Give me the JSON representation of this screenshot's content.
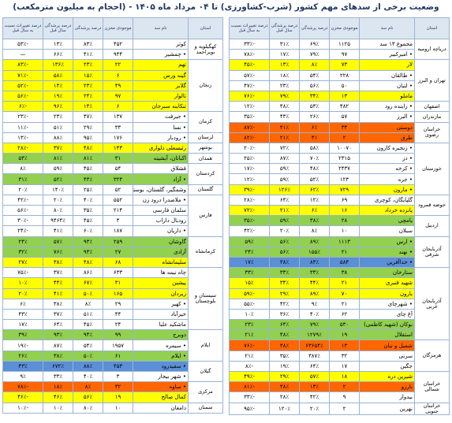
{
  "title": "وضعیت برخی از سدهای مهم کشور (شرب-کشاورزی)  تا ۰۴ مرداد ماه ۱۴۰۵ - (احجام به میلیون مترمکعب)",
  "tables": [
    {
      "headers": [
        "استان",
        "نام سد",
        "موجودی مخزن",
        "درصد پرشدگی",
        "درصد پرشدگی سال قبل",
        "درصد تغییرات نسبت به سال قبل"
      ],
      "groups": [
        {
          "province": "دریاچه ارومیه",
          "rows": [
            {
              "name": "مجموع ۱۳ سد",
              "cells": [
                "۱۱۲۵",
                "۶۹٪",
                "۳۱٪",
                "-۳۳٪"
              ]
            },
            {
              "name": "• امیرکبیر",
              "cells": [
                "۹۷",
                "۷۹٪",
                "۱۷٪",
                "-۷۸٪"
              ]
            }
          ]
        },
        {
          "province": "تهران و البرز",
          "rows": [
            {
              "name": "لار",
              "cells": [
                "۷۳",
                "۸٪",
                "۱۳٪",
                "-۴۵٪"
              ],
              "color": "#ffff00"
            },
            {
              "name": "• طالقان",
              "cells": [
                "۲۲۸",
                "۵۴٪",
                "۱۸٪",
                "-۵۷٪"
              ]
            },
            {
              "name": "• لتیان",
              "cells": [
                "۵۰",
                "۵۶٪",
                "۲۳٪",
                "-۴۷٪"
              ]
            },
            {
              "name": "ماملو",
              "cells": [
                "۱۳",
                "۳۴٪",
                "۷۹٪",
                "-۷۶٪"
              ],
              "color": "#ffff00"
            }
          ]
        },
        {
          "province": "اصفهان",
          "rows": [
            {
              "name": "• زاینده رود",
              "cells": [
                "۴۸۲",
                "۵۳٪",
                "۴۸٪",
                "-۱۲٪"
              ]
            }
          ]
        },
        {
          "province": "مازندران",
          "rows": [
            {
              "name": "• البرز",
              "cells": [
                "۵۷",
                "۲۶٪",
                "۴۳٪",
                "-۳۵٪"
              ]
            }
          ]
        },
        {
          "province": "خراسان رضوی",
          "rows": [
            {
              "name": "دوستی",
              "cells": [
                "۳۴",
                "۶٪",
                "۴۱٪",
                "-۸۷٪"
              ],
              "color": "#ff6600"
            },
            {
              "name": "طرق",
              "cells": [
                "۲",
                "۴٪",
                "۲۱٪",
                "-۸۲٪"
              ],
              "color": "#ff6600"
            }
          ]
        },
        {
          "province": "خوزستان",
          "rows": [
            {
              "name": "• زنجیره کارون",
              "cells": [
                "۱۰۰۷۰",
                "۵۸٪",
                "۷۲٪",
                "-۲۰٪"
              ]
            },
            {
              "name": "• دز",
              "cells": [
                "۲۳۱۵",
                "۷۰٪",
                "۸۷٪",
                "-۲۵٪"
              ]
            },
            {
              "name": "• کرخه",
              "cells": [
                "۲۴۳۷",
                "۴۸٪",
                "۵۹٪",
                "-۱۷٪"
              ]
            },
            {
              "name": "• جره",
              "cells": [
                "۱۲۳",
                "۵۲٪",
                "۵۹٪",
                "-۱۲٪"
              ]
            },
            {
              "name": "• مارون",
              "cells": [
                "۷۲۹",
                "۶۲٪",
                "۱۲۶٪",
                "-۳۹٪"
              ],
              "color": "#ffff00"
            }
          ]
        },
        {
          "province": "حوضه قمرود",
          "rows": [
            {
              "name": "گلپایگان، کوچری",
              "cells": [
                "۶۹",
                "۱۲٪",
                "۶۴٪",
                "-۲۸٪"
              ]
            },
            {
              "name": "پانزده خرداد",
              "cells": [
                "۱۶",
                "۶٪",
                "۲۱٪",
                "-۷۲٪"
              ],
              "color": "#ffff00"
            }
          ]
        },
        {
          "province": "اردبیل",
          "rows": [
            {
              "name": "یامچی",
              "cells": [
                "۲۸",
                "۳۸٪",
                "۵۹٪",
                "-۳۵٪"
              ],
              "color": "#92d050"
            },
            {
              "name": "سبلان",
              "cells": [
                "۱۰",
                "۸٪",
                "۲۰٪",
                "-۴۲٪"
              ]
            }
          ]
        },
        {
          "province": "آذربایجان شرقی",
          "rows": [
            {
              "name": "• ارس",
              "cells": [
                "۱۱۱۳",
                "۸۹٪",
                "۵۶٪",
                "۵۹٪"
              ],
              "color": "#92d050"
            },
            {
              "name": "• نهند",
              "cells": [
                "۲۱",
                "۱۵۵٪",
                "۵۶٪",
                "۲۴٪"
              ],
              "color": "#92d050"
            },
            {
              "name": "• خداآفرین",
              "cells": [
                "۵۸۴",
                "۸۳٪",
                "۳۸٪",
                "۱۷٪"
              ],
              "color": "#5b8fd6"
            }
          ]
        },
        {
          "province": "آذربایجان غربی",
          "rows": [
            {
              "name": "ستارخان",
              "cells": [
                "۳۸",
                "۳۳٪",
                "۳۳٪",
                "۳۳٪"
              ],
              "color": "#92d050"
            },
            {
              "name": "شهید قنبری",
              "cells": [
                "۲۱",
                "۴۴٪",
                "۳۴٪",
                "۱۵٪"
              ],
              "color": "#ffff00"
            },
            {
              "name": "بارون",
              "cells": [
                "۷۰",
                "۸۹٪",
                "۲۹٪",
                "-۵۹٪"
              ],
              "color": "#ffff00"
            },
            {
              "name": "• شهرچای",
              "cells": [
                "۲۱",
                "۹٪",
                "۴۲٪",
                "-۵۵٪"
              ]
            },
            {
              "name": "آغ چای",
              "cells": [
                "۶۲",
                "۴۰٪",
                "۳۶٪",
                "۱۰٪"
              ]
            },
            {
              "name": "بوکان (شهید کاظمی)",
              "cells": [
                "۵۳۰",
                "۷۹٪",
                "۶۴٪",
                "۲۳٪"
              ],
              "color": "#92d050"
            },
            {
              "name": "استقلال",
              "cells": [
                "۱۹",
                "۱۲۷۹٪",
                "۴۸٪",
                "۲۱٪"
              ],
              "color": "#92d050"
            }
          ]
        },
        {
          "province": "هرمزگان",
          "rows": [
            {
              "name": "شمیل و نیان",
              "cells": [
                "۱۳",
                "۶۳۶۵۴٪",
                "۳۸٪",
                "-۷۶٪"
              ],
              "color": "#ff6600"
            },
            {
              "name": "سرنی",
              "cells": [
                "۳۲",
                "۳۸۷٪",
                "۳۵٪",
                "۲۱٪"
              ]
            },
            {
              "name": "جگین",
              "cells": [
                "۱۷",
                "۶۴٪",
                "۱۹٪",
                "-۸٪"
              ]
            }
          ]
        },
        {
          "province": "خراسان شمالی",
          "rows": [
            {
              "name": "شیرین دره",
              "cells": [
                "۱۸",
                "۵۷٪",
                "۲۹٪",
                "-۴۹٪"
              ],
              "color": "#ffff00"
            },
            {
              "name": "بارزو",
              "cells": [
                "۲",
                "۱۳٪",
                "۳۸٪",
                "-۸۱٪"
              ],
              "color": "#ff6600"
            },
            {
              "name": "بیدواز",
              "cells": [
                "۹",
                "۴۲٪",
                "۲۸٪",
                "-۳۳٪"
              ]
            }
          ]
        },
        {
          "province": "خراسان جنوبی",
          "rows": [
            {
              "name": "نهرین",
              "cells": [
                "۲",
                "۲۰٪",
                "۱۲۰٪",
                "-۹۵٪"
              ]
            }
          ]
        }
      ]
    },
    {
      "headers": [
        "استان",
        "نام سد",
        "موجودی مخزن",
        "درصد پرشدگی",
        "درصد پرشدگی سال قبل",
        "درصد تغییرات نسبت به سال قبل"
      ],
      "groups": [
        {
          "province": "کهگیلویه و بویراحمد",
          "rows": [
            {
              "name": "کوثر",
              "cells": [
                "۴۵۲",
                "۸۳٪",
                "۱۳٪",
                "-۵۳٪"
              ]
            },
            {
              "name": "• چمشیر",
              "cells": [
                "۹۴۴",
                "۴۱٪",
                "۶۶٪",
                "—"
              ]
            }
          ]
        },
        {
          "province": "زنجان",
          "rows": [
            {
              "name": "تهم",
              "cells": [
                "۲۲",
                "۲۳٪",
                "۱۳۶٪",
                "-۸۳٪"
              ],
              "color": "#ffff00"
            },
            {
              "name": "گینه ورس",
              "cells": [
                "۶",
                "۱۵٪",
                "۵۸٪",
                "-۷۱٪"
              ],
              "color": "#ffff00"
            },
            {
              "name": "گلابر",
              "cells": [
                "۴۹",
                "۲۳٪",
                "۱۴٪",
                "-۵۲٪"
              ],
              "color": "#ffff00"
            },
            {
              "name": "تالوار",
              "cells": [
                "۹۷",
                "۲۴٪",
                "۱۹٪",
                "-۵۶٪"
              ],
              "color": "#ffff00"
            },
            {
              "name": "تنکابنه سبرجان",
              "cells": [
                "۶",
                "۱۴٪",
                "۹۶٪",
                "-۶٪"
              ],
              "color": "#ffff00"
            }
          ]
        },
        {
          "province": "کرمان",
          "rows": [
            {
              "name": "• جیرفت",
              "cells": [
                "۱۳۷",
                "۴۷٪",
                "۲۳٪",
                "-۲۳٪"
              ]
            },
            {
              "name": "• نسا",
              "cells": [
                "۳۳",
                "۲۹٪",
                "۵۱٪",
                "-۱۱٪"
              ]
            }
          ]
        },
        {
          "province": "لرستان",
          "rows": [
            {
              "name": "• رودبار",
              "cells": [
                "۱۷۶",
                "۹۵٪",
                "۸۸٪",
                "-۱۳٪"
              ]
            }
          ]
        },
        {
          "province": "بوشهر",
          "rows": [
            {
              "name": "رئیسعلی دلواری",
              "cells": [
                "۱۴۳",
                "۴۸٪",
                "۳۷٪",
                "-۲۸٪"
              ],
              "color": "#ffff00"
            }
          ]
        },
        {
          "province": "همدان",
          "rows": [
            {
              "name": "اکباتان، آبشینه",
              "cells": [
                "۳۱",
                "۸۱٪",
                "۸۱٪",
                "۵۴٪"
              ],
              "color": "#92d050"
            }
          ]
        },
        {
          "province": "کردستان",
          "rows": [
            {
              "name": "قشلاق",
              "cells": [
                "۵۴",
                "۴۵٪",
                "۵۹٪",
                "۸٪"
              ]
            },
            {
              "name": "• آزاد",
              "cells": [
                "۳۲۴",
                "۴۳٪",
                "۵۲٪",
                "۳۱٪"
              ],
              "color": "#92d050"
            }
          ]
        },
        {
          "province": "گلستان",
          "rows": [
            {
              "name": "وشمگیر، گلستان، بوستان",
              "cells": [
                "۵۲",
                "۲۵٪",
                "۱۴۰٪",
                "۲۰٪"
              ]
            }
          ]
        },
        {
          "province": "فارس",
          "rows": [
            {
              "name": "• ملاصدرا درود زن",
              "cells": [
                "۵۵۲",
                "۴۰٪",
                "۲۰٪",
                "-۴۲٪"
              ]
            },
            {
              "name": "سلمان فارسی",
              "cells": [
                "۲۱۴",
                "۳۵٪",
                "۸۰٪",
                "-۵۶٪"
              ]
            },
            {
              "name": "رودبال داراب",
              "cells": [
                "۳",
                "۴۵٪",
                "۹۴۶۴٪",
                "-۳۰٪"
              ]
            },
            {
              "name": "• داریان",
              "cells": [
                "۱۸۷",
                "۶۰٪",
                "۴۱٪",
                "-۲۴٪"
              ]
            }
          ]
        },
        {
          "province": "کرمانشاه",
          "rows": [
            {
              "name": "گاوشان",
              "cells": [
                "۲۵۹",
                "۹۳٪",
                "۵۷٪",
                "۲۴٪"
              ],
              "color": "#92d050"
            },
            {
              "name": "آزادی",
              "cells": [
                "۲۷",
                "۹۳٪",
                "۷۶٪",
                "۳۲٪"
              ],
              "color": "#92d050"
            },
            {
              "name": "سلیمانشاه",
              "cells": [
                "۶۸",
                "۴۸٪",
                "۳۸٪",
                "۲۷٪"
              ],
              "color": "#ffff00"
            }
          ]
        },
        {
          "province": "سیستان و بلوچستان",
          "rows": [
            {
              "name": "چاه نیمه ها",
              "cells": [
                "۶۳۳",
                "۸۶٪",
                "۳۷٪",
                "-۷۵٪"
              ]
            },
            {
              "name": "پیشین",
              "cells": [
                "۳۱",
                "۶۷٪",
                "۴۴٪",
                "۱۰٪"
              ],
              "color": "#ffff00"
            },
            {
              "name": "زیردان",
              "cells": [
                "۱۶۵",
                "۵۰٪",
                "۴۱٪",
                "۲۰٪"
              ],
              "color": "#ffff00"
            },
            {
              "name": "• کهیر",
              "cells": [
                "۲۹",
                "۸٪",
                "۳۸٪",
                "۶٪"
              ]
            },
            {
              "name": "خیرآباد",
              "cells": [
                "۴۴",
                "۵۱٪",
                "۳۷٪",
                "۴۳٪"
              ]
            },
            {
              "name": "ماشکید علیا",
              "cells": [
                "۲۴",
                "۴۵٪",
                "۶۴٪",
                "۱۷٪"
              ]
            }
          ]
        },
        {
          "province": "ایلام",
          "rows": [
            {
              "name": "دوبرج",
              "cells": [
                "۹۹",
                "۹۴٪",
                "۹۳٪",
                "۳۹٪"
              ],
              "color": "#92d050"
            },
            {
              "name": "• سیمره",
              "cells": [
                "۱۹۵۷",
                "۵۴٪",
                "۸۷٪",
                "-۱۹٪"
              ]
            },
            {
              "name": "• ایلام",
              "cells": [
                "۶۱",
                "۵۰٪",
                "۳۸٪",
                "۲۶٪"
              ],
              "color": "#92d050"
            }
          ]
        },
        {
          "province": "گیلان",
          "rows": [
            {
              "name": "• سفیدرود",
              "cells": [
                "۴۵۳",
                "۸۸٪",
                "۶۷۲٪",
                "۴۳٪"
              ],
              "color": "#5b8fd6"
            },
            {
              "name": "• شهر بیجار",
              "cells": [
                "۳",
                "۴۰٪",
                "۳۳٪",
                "۹٪"
              ]
            }
          ]
        },
        {
          "province": "مرکزی",
          "rows": [
            {
              "name": "• ساوه",
              "cells": [
                "۳۲",
                "۸٪",
                "۱۸٪",
                "-۷۸٪"
              ],
              "color": "#ff6600"
            },
            {
              "name": "کمال صالح",
              "cells": [
                "۱۹",
                "۵۶٪",
                "۴۶٪",
                "-۴۶٪"
              ],
              "color": "#ffff00"
            }
          ]
        },
        {
          "province": "سمنان",
          "rows": [
            {
              "name": "دامغان",
              "cells": [
                "۱۰",
                "۸۰٪",
                "۱۰٪",
                "-۱۰٪"
              ]
            }
          ]
        }
      ]
    }
  ]
}
